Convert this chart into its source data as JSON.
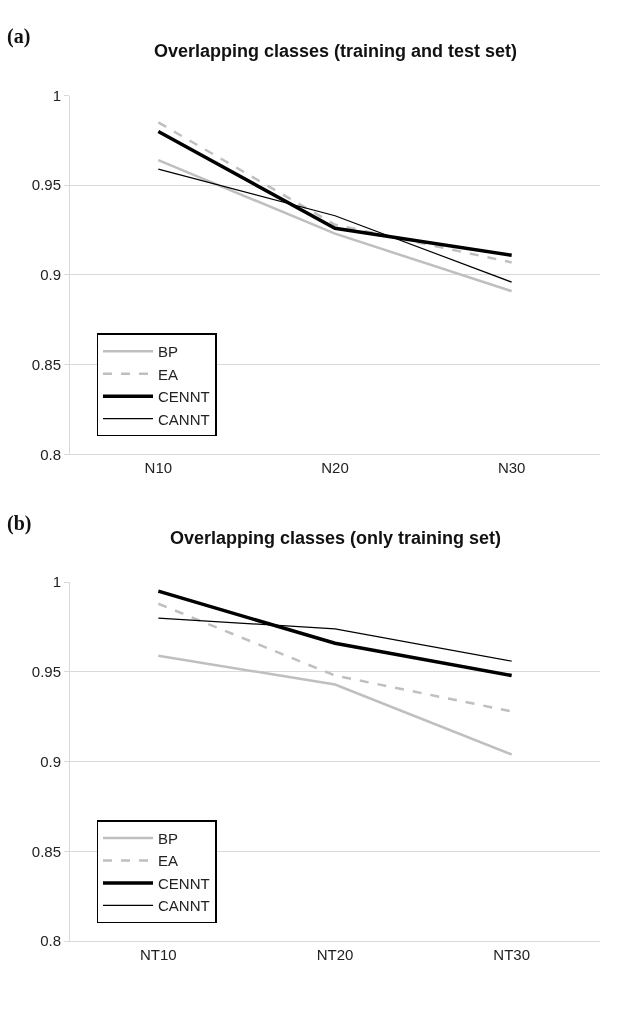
{
  "chart_data": [
    {
      "type": "line",
      "title": "Overlapping classes (training and test set)",
      "annotations": [
        "(a)"
      ],
      "categories": [
        "N10",
        "N20",
        "N30"
      ],
      "ylim": [
        0.8,
        1
      ],
      "yticks": [
        0.8,
        0.85,
        0.9,
        0.95,
        1
      ],
      "grid": "y",
      "legend": "bottom left",
      "series": [
        {
          "name": "BP",
          "color": "#bfbfbf",
          "line_style": "solid",
          "values": [
            0.964,
            0.923,
            0.891
          ]
        },
        {
          "name": "EA",
          "color": "#bfbfbf",
          "line_style": "dashed",
          "values": [
            0.985,
            0.928,
            0.907
          ]
        },
        {
          "name": "CENNT",
          "color": "#000000",
          "line_style": "solid",
          "values": [
            0.98,
            0.926,
            0.911
          ]
        },
        {
          "name": "CANNT",
          "color": "#000000",
          "line_style": "solid",
          "values": [
            0.959,
            0.933,
            0.896
          ]
        }
      ]
    },
    {
      "type": "line",
      "title": "Overlapping classes (only training set)",
      "annotations": [
        "(b)"
      ],
      "categories": [
        "NT10",
        "NT20",
        "NT30"
      ],
      "ylim": [
        0.8,
        1
      ],
      "yticks": [
        0.8,
        0.85,
        0.9,
        0.95,
        1
      ],
      "grid": "y",
      "legend": "bottom left",
      "series": [
        {
          "name": "BP",
          "color": "#bfbfbf",
          "line_style": "solid",
          "values": [
            0.959,
            0.943,
            0.904
          ]
        },
        {
          "name": "EA",
          "color": "#bfbfbf",
          "line_style": "dashed",
          "values": [
            0.988,
            0.948,
            0.928
          ]
        },
        {
          "name": "CENNT",
          "color": "#000000",
          "line_style": "solid",
          "values": [
            0.995,
            0.966,
            0.948
          ]
        },
        {
          "name": "CANNT",
          "color": "#000000",
          "line_style": "solid",
          "values": [
            0.98,
            0.974,
            0.956
          ]
        }
      ]
    }
  ]
}
